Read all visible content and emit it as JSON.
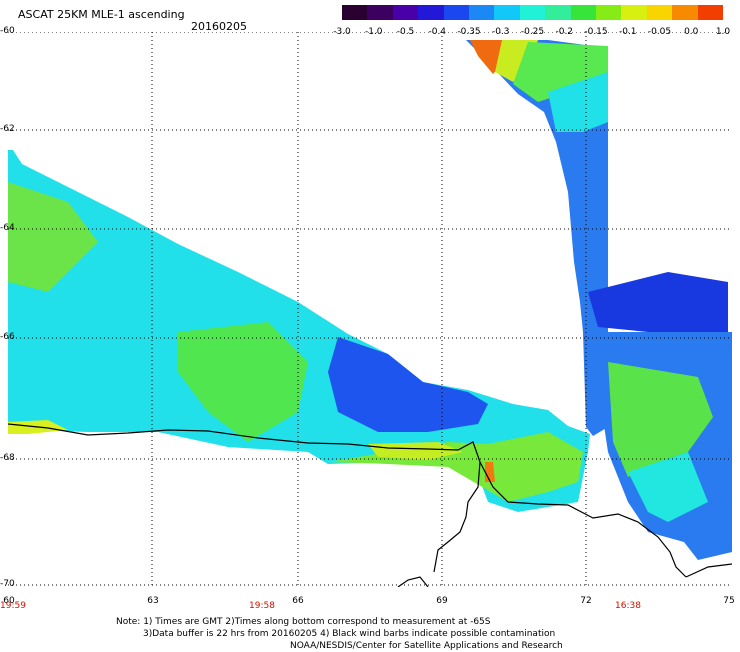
{
  "header": {
    "title": "ASCAT 25KM MLE-1 ascending",
    "date": "20160205"
  },
  "colorbar": {
    "labels": [
      "-3.0",
      "-1.0",
      "-0.5",
      "-0.4",
      "-0.35",
      "-0.3",
      "-0.25",
      "-0.2",
      "-0.15",
      "-0.1",
      "-0.05",
      "0.0",
      "1.0"
    ],
    "colors": [
      "#2a0030",
      "#3c0060",
      "#4a00a8",
      "#2418d8",
      "#1a48ee",
      "#1c88f6",
      "#12c8f8",
      "#20f2d8",
      "#32ee9a",
      "#36e43a",
      "#86ec16",
      "#d8f010",
      "#f8d400",
      "#f88a00",
      "#f23e00"
    ]
  },
  "map": {
    "y_ticks": [
      "-60",
      "-62",
      "-64",
      "-66",
      "-68",
      "-70"
    ],
    "x_ticks": [
      "60",
      "63",
      "66",
      "69",
      "72",
      "75"
    ],
    "time_labels": [
      "19:59",
      "19:58",
      "16:38"
    ]
  },
  "footer": {
    "line1": "Note: 1) Times are GMT 2)Times along bottom correspond to measurement at -65S",
    "line2": "3)Data buffer is 22 hrs from 20160205 4) Black wind barbs indicate possible contamination",
    "line3": "NOAA/NESDIS/Center for Satellite Applications and Research"
  }
}
